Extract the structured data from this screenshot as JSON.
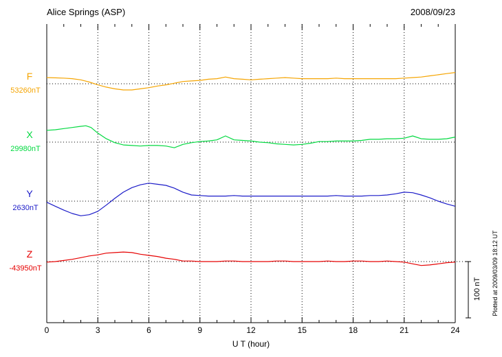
{
  "header": {
    "title": "Alice Springs (ASP)",
    "date": "2008/09/23"
  },
  "chart_data": {
    "type": "line",
    "title": "Alice Springs (ASP)",
    "date": "2008/09/23",
    "xlabel": "U T (hour)",
    "x_range": [
      0,
      24
    ],
    "x_ticks": [
      0,
      3,
      6,
      9,
      12,
      15,
      18,
      21,
      24
    ],
    "grid": "dotted-vertical-at-major-ticks",
    "legend_position": "left-margin-per-trace",
    "scale_bar": {
      "label": "100 nT",
      "nT": 100
    },
    "footer_note": "Plotted at 2009/03/09 18:12 UT",
    "series": [
      {
        "name": "F",
        "baseline_label": "53260nT",
        "baseline_nT": 53260,
        "color": "#F5A400",
        "points": [
          [
            0,
            11
          ],
          [
            0.5,
            10.5
          ],
          [
            1,
            10
          ],
          [
            1.5,
            9
          ],
          [
            2,
            7
          ],
          [
            2.5,
            3
          ],
          [
            3,
            -2
          ],
          [
            3.5,
            -6
          ],
          [
            4,
            -9
          ],
          [
            4.5,
            -11
          ],
          [
            5,
            -11
          ],
          [
            5.5,
            -9
          ],
          [
            6,
            -7
          ],
          [
            6.5,
            -4
          ],
          [
            7,
            -2
          ],
          [
            7.5,
            1
          ],
          [
            8,
            4
          ],
          [
            8.5,
            5
          ],
          [
            9,
            6
          ],
          [
            9.5,
            8
          ],
          [
            10,
            9
          ],
          [
            10.5,
            12
          ],
          [
            11,
            9
          ],
          [
            11.5,
            8
          ],
          [
            12,
            7
          ],
          [
            12.5,
            8
          ],
          [
            13,
            9
          ],
          [
            13.5,
            10
          ],
          [
            14,
            11
          ],
          [
            14.5,
            10
          ],
          [
            15,
            9
          ],
          [
            15.5,
            9
          ],
          [
            16,
            9
          ],
          [
            16.5,
            9
          ],
          [
            17,
            10
          ],
          [
            17.5,
            9
          ],
          [
            18,
            9
          ],
          [
            18.5,
            9
          ],
          [
            19,
            9
          ],
          [
            19.5,
            9
          ],
          [
            20,
            9
          ],
          [
            20.5,
            9
          ],
          [
            21,
            10
          ],
          [
            21.5,
            11
          ],
          [
            22,
            12
          ],
          [
            22.5,
            14
          ],
          [
            23,
            16
          ],
          [
            23.5,
            18
          ],
          [
            24,
            20
          ]
        ]
      },
      {
        "name": "X",
        "baseline_label": "29980nT",
        "baseline_nT": 29980,
        "color": "#00D93F",
        "points": [
          [
            0,
            21
          ],
          [
            0.5,
            22
          ],
          [
            1,
            24
          ],
          [
            1.5,
            26
          ],
          [
            2,
            28
          ],
          [
            2.3,
            29
          ],
          [
            2.6,
            26
          ],
          [
            3,
            16
          ],
          [
            3.5,
            6
          ],
          [
            4,
            -1
          ],
          [
            4.5,
            -5
          ],
          [
            5,
            -6
          ],
          [
            5.5,
            -7
          ],
          [
            6,
            -6
          ],
          [
            6.5,
            -6
          ],
          [
            7,
            -7
          ],
          [
            7.5,
            -10
          ],
          [
            8,
            -4
          ],
          [
            8.5,
            -1
          ],
          [
            9,
            1
          ],
          [
            9.5,
            2
          ],
          [
            10,
            4
          ],
          [
            10.5,
            11
          ],
          [
            11,
            4
          ],
          [
            11.5,
            3
          ],
          [
            12,
            2
          ],
          [
            12.5,
            0
          ],
          [
            13,
            -1
          ],
          [
            13.5,
            -3
          ],
          [
            14,
            -4
          ],
          [
            14.5,
            -5
          ],
          [
            15,
            -4
          ],
          [
            15.5,
            -2
          ],
          [
            16,
            1
          ],
          [
            16.5,
            1
          ],
          [
            17,
            2
          ],
          [
            17.5,
            2
          ],
          [
            18,
            2
          ],
          [
            18.5,
            3
          ],
          [
            19,
            5
          ],
          [
            19.5,
            5
          ],
          [
            20,
            6
          ],
          [
            20.5,
            6
          ],
          [
            21,
            7
          ],
          [
            21.5,
            11
          ],
          [
            22,
            6
          ],
          [
            22.5,
            5
          ],
          [
            23,
            5
          ],
          [
            23.5,
            6
          ],
          [
            24,
            9
          ]
        ]
      },
      {
        "name": "Y",
        "baseline_label": "2630nT",
        "baseline_nT": 2630,
        "color": "#1A1AC8",
        "points": [
          [
            0,
            -2
          ],
          [
            0.5,
            -9
          ],
          [
            1,
            -16
          ],
          [
            1.5,
            -22
          ],
          [
            2,
            -26
          ],
          [
            2.5,
            -24
          ],
          [
            3,
            -18
          ],
          [
            3.5,
            -7
          ],
          [
            4,
            5
          ],
          [
            4.5,
            16
          ],
          [
            5,
            24
          ],
          [
            5.5,
            29
          ],
          [
            6,
            32
          ],
          [
            6.5,
            30
          ],
          [
            7,
            28
          ],
          [
            7.5,
            23
          ],
          [
            8,
            16
          ],
          [
            8.5,
            11
          ],
          [
            9,
            10
          ],
          [
            9.5,
            9
          ],
          [
            10,
            9
          ],
          [
            10.5,
            9
          ],
          [
            11,
            10
          ],
          [
            11.5,
            9
          ],
          [
            12,
            9
          ],
          [
            12.5,
            9
          ],
          [
            13,
            9
          ],
          [
            13.5,
            9
          ],
          [
            14,
            9
          ],
          [
            14.5,
            9
          ],
          [
            15,
            9
          ],
          [
            15.5,
            9
          ],
          [
            16,
            9
          ],
          [
            16.5,
            9
          ],
          [
            17,
            10
          ],
          [
            17.5,
            9
          ],
          [
            18,
            9
          ],
          [
            18.5,
            9
          ],
          [
            19,
            10
          ],
          [
            19.5,
            10
          ],
          [
            20,
            11
          ],
          [
            20.5,
            13
          ],
          [
            21,
            16
          ],
          [
            21.5,
            15
          ],
          [
            22,
            11
          ],
          [
            22.5,
            6
          ],
          [
            23,
            0
          ],
          [
            23.5,
            -5
          ],
          [
            24,
            -9
          ]
        ]
      },
      {
        "name": "Z",
        "baseline_label": "-43950nT",
        "baseline_nT": -43950,
        "color": "#E60000",
        "points": [
          [
            0,
            -1
          ],
          [
            0.5,
            0
          ],
          [
            1,
            2
          ],
          [
            1.5,
            4
          ],
          [
            2,
            7
          ],
          [
            2.5,
            10
          ],
          [
            3,
            12
          ],
          [
            3.5,
            15
          ],
          [
            4,
            16
          ],
          [
            4.5,
            17
          ],
          [
            5,
            16
          ],
          [
            5.5,
            13
          ],
          [
            6,
            11
          ],
          [
            6.5,
            9
          ],
          [
            7,
            6
          ],
          [
            7.5,
            4
          ],
          [
            8,
            1
          ],
          [
            8.5,
            1
          ],
          [
            9,
            0
          ],
          [
            9.5,
            0
          ],
          [
            10,
            0
          ],
          [
            10.5,
            1
          ],
          [
            11,
            1
          ],
          [
            11.5,
            0
          ],
          [
            12,
            0
          ],
          [
            12.5,
            0
          ],
          [
            13,
            0
          ],
          [
            13.5,
            1
          ],
          [
            14,
            1
          ],
          [
            14.5,
            0
          ],
          [
            15,
            0
          ],
          [
            15.5,
            0
          ],
          [
            16,
            0
          ],
          [
            16.5,
            1
          ],
          [
            17,
            0
          ],
          [
            17.5,
            0
          ],
          [
            18,
            1
          ],
          [
            18.5,
            1
          ],
          [
            19,
            0
          ],
          [
            19.5,
            0
          ],
          [
            20,
            1
          ],
          [
            20.5,
            0
          ],
          [
            21,
            -1
          ],
          [
            21.5,
            -4
          ],
          [
            22,
            -7
          ],
          [
            22.5,
            -6
          ],
          [
            23,
            -4
          ],
          [
            23.5,
            -2
          ],
          [
            24,
            -1
          ]
        ]
      }
    ]
  }
}
